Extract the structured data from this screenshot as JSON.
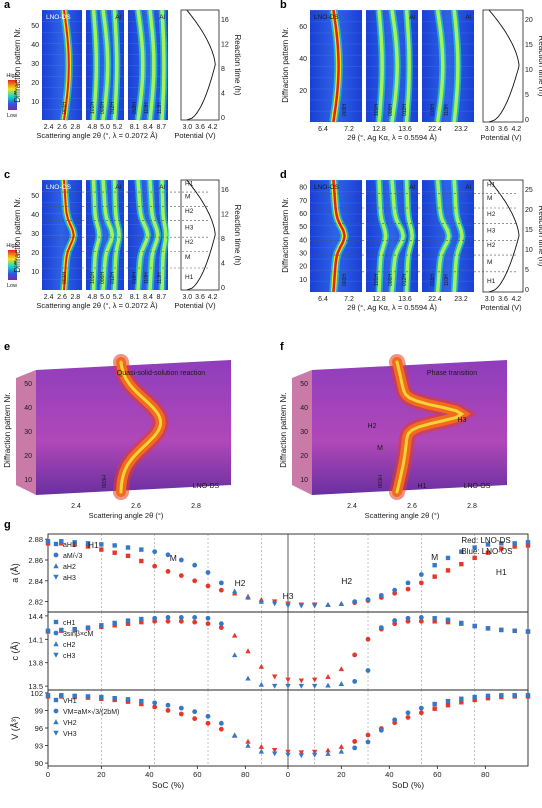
{
  "panel_letters": [
    "a",
    "b",
    "c",
    "d",
    "e",
    "f",
    "g"
  ],
  "colors": {
    "map_low": "#1d2bd8",
    "map_mid": "#19d6c6",
    "map_high": "#f4e21b",
    "map_peak": "#e2231a",
    "red_series": "#e8362b",
    "blue_series": "#3579c6",
    "surface_low": "#5b2a8e",
    "surface_mid": "#b23a8c"
  },
  "labels": {
    "lno_ds": "LNO-DS",
    "lno_os": "LNO-OS",
    "al": "Al",
    "high": "High",
    "low": "Low",
    "diffraction_pattern": "Diffraction pattern Nr.",
    "reaction_time": "Reaction time (h)",
    "potential": "Potential (V)",
    "scattering_a": "Scattering angle 2θ (°, λ = 0.2072 Å)",
    "scattering_b": "2θ (°, Ag Kα, λ = 0.5594 Å)",
    "scattering_e": "Scattering angle 2θ (°)",
    "quasi": "Quasi-solid-solution reaction",
    "phase_transition": "Phase transition",
    "legend_red": "Red: LNO-DS",
    "legend_blue": "Blue: LNO-OS"
  },
  "panel_a": {
    "tick_groups": [
      [
        "2.4",
        "2.6",
        "2.8"
      ],
      [
        "4.8",
        "5.0",
        "5.2"
      ],
      [
        "8.1",
        "8.4",
        "8.7"
      ],
      [
        "3.0",
        "3.6",
        "4.2"
      ]
    ],
    "y_ticks": [
      "10",
      "20",
      "30",
      "40",
      "50"
    ],
    "time_ticks": [
      "0",
      "4",
      "8",
      "12",
      "16"
    ],
    "hkl": [
      "003H",
      "101H",
      "006H",
      "012H",
      "018H",
      "110H",
      "113H"
    ]
  },
  "panel_b": {
    "tick_groups": [
      [
        "6.4",
        "7.2"
      ],
      [
        "12.8",
        "13.6"
      ],
      [
        "22.4",
        "23.2"
      ],
      [
        "3.0",
        "3.6",
        "4.2"
      ]
    ],
    "y_ticks": [
      "20",
      "40",
      "60"
    ],
    "time_ticks": [
      "0",
      "5",
      "10",
      "15",
      "20"
    ],
    "hkl": [
      "003H",
      "101H",
      "006H",
      "012H",
      "018H",
      "110H"
    ]
  },
  "panel_c": {
    "tick_groups": [
      [
        "2.4",
        "2.6",
        "2.8"
      ],
      [
        "4.8",
        "5.0",
        "5.2"
      ],
      [
        "8.1",
        "8.4",
        "8.7"
      ],
      [
        "3.0",
        "3.6",
        "4.2"
      ]
    ],
    "y_ticks": [
      "10",
      "20",
      "30",
      "40",
      "50"
    ],
    "time_ticks": [
      "0",
      "4",
      "8",
      "12",
      "16"
    ],
    "phases": [
      "H1",
      "M",
      "H2",
      "H3",
      "H2",
      "M",
      "H1"
    ],
    "hkl": [
      "003H",
      "101H",
      "006H",
      "012H",
      "018H",
      "110H",
      "113H"
    ]
  },
  "panel_d": {
    "tick_groups": [
      [
        "6.4",
        "7.2"
      ],
      [
        "12.8",
        "13.6"
      ],
      [
        "22.4",
        "23.2"
      ],
      [
        "3.0",
        "3.6",
        "4.2"
      ]
    ],
    "y_ticks": [
      "10",
      "20",
      "30",
      "40",
      "50",
      "60",
      "70",
      "80"
    ],
    "time_ticks": [
      "0",
      "5",
      "10",
      "15",
      "20",
      "25"
    ],
    "phases": [
      "H1",
      "M",
      "H2",
      "H3",
      "H2",
      "M",
      "H1"
    ],
    "hkl": [
      "003H",
      "101H",
      "006H",
      "012H",
      "018H",
      "110H"
    ]
  },
  "panel_e": {
    "x_ticks": [
      "2.4",
      "2.6",
      "2.8"
    ],
    "y_ticks": [
      "10",
      "20",
      "30",
      "40",
      "50"
    ],
    "hkl": "003H"
  },
  "panel_f": {
    "x_ticks": [
      "2.4",
      "2.6",
      "2.8"
    ],
    "y_ticks": [
      "10",
      "20",
      "30",
      "40",
      "50"
    ],
    "phase_tags": [
      "H1",
      "M",
      "H2",
      "H3"
    ],
    "hkl": "003H"
  },
  "chart_data": [
    {
      "type": "scatter",
      "panel": "g-top",
      "ylabel": "a (Å)",
      "ylim": [
        2.81,
        2.885
      ],
      "y_ticks": [
        "2.82",
        "2.84",
        "2.86",
        "2.88"
      ],
      "legend": [
        "aH1",
        "aM/√3",
        "aH2",
        "aH3"
      ],
      "phase_labels": [
        "H1",
        "M",
        "H2",
        "H3",
        "H2",
        "M",
        "H1"
      ],
      "series": [
        {
          "name": "LNO-DS",
          "x": [
            0,
            5,
            10,
            15,
            20,
            25,
            30,
            35,
            40,
            45,
            50,
            55,
            60,
            65,
            70,
            75,
            80,
            85,
            90,
            95,
            100,
            105,
            110,
            115,
            120,
            125,
            130,
            135,
            140,
            145,
            150,
            155,
            160,
            165,
            170,
            175,
            180
          ],
          "values": [
            2.876,
            2.876,
            2.875,
            2.873,
            2.87,
            2.867,
            2.864,
            2.859,
            2.854,
            2.849,
            2.845,
            2.84,
            2.835,
            2.831,
            2.828,
            2.825,
            2.822,
            2.82,
            2.818,
            2.817,
            2.817,
            2.817,
            2.818,
            2.819,
            2.821,
            2.824,
            2.828,
            2.832,
            2.838,
            2.844,
            2.85,
            2.856,
            2.862,
            2.867,
            2.871,
            2.873,
            2.874
          ]
        },
        {
          "name": "LNO-OS",
          "x": [
            0,
            5,
            10,
            15,
            20,
            25,
            30,
            35,
            40,
            45,
            50,
            55,
            60,
            65,
            70,
            75,
            80,
            85,
            90,
            95,
            100,
            105,
            110,
            115,
            120,
            125,
            130,
            135,
            140,
            145,
            150,
            155,
            160,
            165,
            170,
            175,
            180
          ],
          "values": [
            2.878,
            2.878,
            2.877,
            2.876,
            2.875,
            2.874,
            2.872,
            2.87,
            2.868,
            2.865,
            2.86,
            2.855,
            2.848,
            2.838,
            2.83,
            2.824,
            2.82,
            2.818,
            2.816,
            2.816,
            2.816,
            2.817,
            2.818,
            2.82,
            2.822,
            2.826,
            2.831,
            2.838,
            2.846,
            2.855,
            2.862,
            2.868,
            2.872,
            2.875,
            2.876,
            2.876,
            2.877
          ]
        }
      ]
    },
    {
      "type": "scatter",
      "panel": "g-middle",
      "ylabel": "c (Å)",
      "ylim": [
        13.45,
        14.45
      ],
      "y_ticks": [
        "13.5",
        "13.8",
        "14.1",
        "14.4"
      ],
      "legend": [
        "cH1",
        "3sinβ×cM",
        "cH2",
        "cH3"
      ],
      "series": [
        {
          "name": "LNO-DS",
          "x": [
            0,
            5,
            10,
            15,
            20,
            25,
            30,
            35,
            40,
            45,
            50,
            55,
            60,
            65,
            70,
            75,
            80,
            85,
            90,
            95,
            100,
            105,
            110,
            115,
            120,
            125,
            130,
            135,
            140,
            145,
            150,
            155,
            160,
            165,
            170,
            175,
            180
          ],
          "values": [
            14.2,
            14.21,
            14.22,
            14.24,
            14.26,
            14.28,
            14.3,
            14.32,
            14.33,
            14.33,
            14.33,
            14.32,
            14.3,
            14.25,
            14.15,
            13.95,
            13.75,
            13.62,
            13.58,
            13.57,
            13.58,
            13.62,
            13.72,
            13.9,
            14.1,
            14.23,
            14.3,
            14.33,
            14.33,
            14.33,
            14.32,
            14.3,
            14.27,
            14.24,
            14.22,
            14.21,
            14.2
          ]
        },
        {
          "name": "LNO-OS",
          "x": [
            0,
            5,
            10,
            15,
            20,
            25,
            30,
            35,
            40,
            45,
            50,
            55,
            60,
            65,
            70,
            75,
            80,
            85,
            90,
            95,
            100,
            105,
            110,
            115,
            120,
            125,
            130,
            135,
            140,
            145,
            150,
            155,
            160,
            165,
            170,
            175,
            180
          ],
          "values": [
            14.21,
            14.22,
            14.23,
            14.25,
            14.28,
            14.31,
            14.34,
            14.36,
            14.37,
            14.38,
            14.38,
            14.38,
            14.37,
            14.3,
            13.9,
            13.6,
            13.52,
            13.5,
            13.5,
            13.5,
            13.5,
            13.51,
            13.53,
            13.56,
            13.7,
            14.25,
            14.34,
            14.37,
            14.38,
            14.37,
            14.35,
            14.31,
            14.27,
            14.24,
            14.22,
            14.21,
            14.2
          ]
        }
      ]
    },
    {
      "type": "scatter",
      "panel": "g-bottom",
      "ylabel": "V (Å³)",
      "xlabel_left": "SoC (%)",
      "xlabel_right": "SoD (%)",
      "ylim": [
        89.5,
        102.5
      ],
      "y_ticks": [
        "90",
        "93",
        "96",
        "99",
        "102"
      ],
      "x_ticks_left": [
        "0",
        "20",
        "40",
        "60",
        "80"
      ],
      "x_ticks_right": [
        "0",
        "20",
        "40",
        "60",
        "80"
      ],
      "legend": [
        "VH1",
        "VM=aM×√3/(2bM)",
        "VH2",
        "VH3"
      ],
      "series": [
        {
          "name": "LNO-DS",
          "x": [
            0,
            5,
            10,
            15,
            20,
            25,
            30,
            35,
            40,
            45,
            50,
            55,
            60,
            65,
            70,
            75,
            80,
            85,
            90,
            95,
            100,
            105,
            110,
            115,
            120,
            125,
            130,
            135,
            140,
            145,
            150,
            155,
            160,
            165,
            170,
            175,
            180
          ],
          "values": [
            101.4,
            101.4,
            101.3,
            101.2,
            101.0,
            100.8,
            100.5,
            100.1,
            99.6,
            99.0,
            98.4,
            97.6,
            96.8,
            95.8,
            94.7,
            93.7,
            92.8,
            92.2,
            91.9,
            91.8,
            91.9,
            92.2,
            92.8,
            93.7,
            94.8,
            95.9,
            96.9,
            97.8,
            98.6,
            99.3,
            99.9,
            100.4,
            100.8,
            101.1,
            101.3,
            101.4,
            101.4
          ]
        },
        {
          "name": "LNO-OS",
          "x": [
            0,
            5,
            10,
            15,
            20,
            25,
            30,
            35,
            40,
            45,
            50,
            55,
            60,
            65,
            70,
            75,
            80,
            85,
            90,
            95,
            100,
            105,
            110,
            115,
            120,
            125,
            130,
            135,
            140,
            145,
            150,
            155,
            160,
            165,
            170,
            175,
            180
          ],
          "values": [
            101.6,
            101.6,
            101.5,
            101.4,
            101.3,
            101.1,
            100.9,
            100.6,
            100.3,
            99.9,
            99.4,
            98.8,
            98.0,
            96.8,
            94.8,
            93.0,
            92.0,
            91.6,
            91.4,
            91.3,
            91.4,
            91.6,
            92.0,
            92.6,
            93.6,
            95.6,
            97.4,
            98.6,
            99.4,
            100.1,
            100.6,
            101.0,
            101.3,
            101.5,
            101.6,
            101.6,
            101.6
          ]
        }
      ]
    }
  ]
}
